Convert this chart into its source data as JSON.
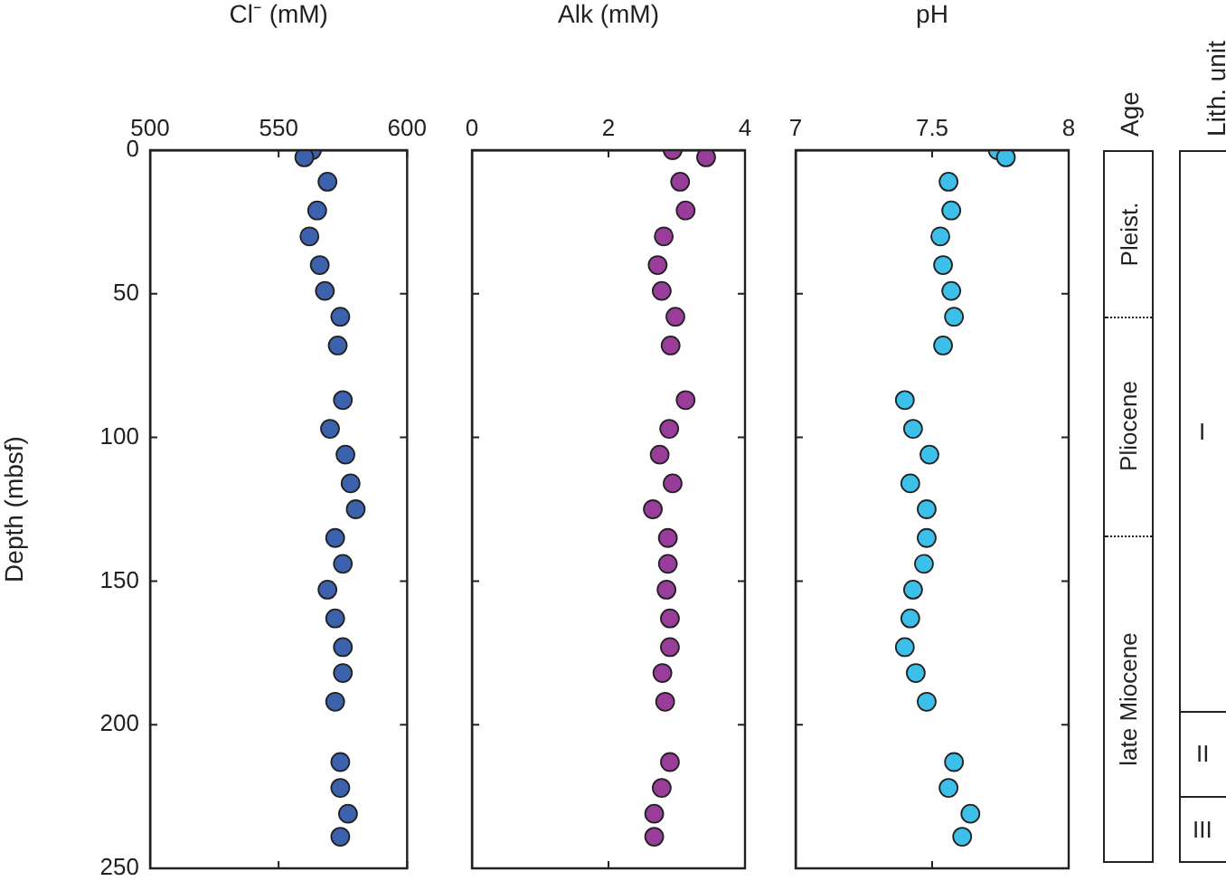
{
  "chart_data": [
    {
      "type": "scatter",
      "xlabel": "Cl⁻ (mM)",
      "ylabel": "Depth (mbsf)",
      "xlim": [
        500,
        600
      ],
      "xticks": [
        500,
        550,
        600
      ],
      "ylim": [
        250,
        0
      ],
      "yticks": [
        0,
        50,
        100,
        150,
        200,
        250
      ],
      "marker": "circle",
      "series": [
        {
          "color": "#3d62ad",
          "x": [
            563,
            560,
            569,
            565,
            562,
            566,
            568,
            574,
            573,
            575,
            570,
            576,
            578,
            580,
            572,
            575,
            569,
            572,
            575,
            575,
            572,
            574,
            574,
            577,
            574
          ],
          "values": [
            0,
            2.5,
            11,
            21,
            30,
            40,
            49,
            58,
            68,
            87,
            97,
            106,
            116,
            125,
            135,
            144,
            153,
            163,
            173,
            182,
            192,
            213,
            222,
            231,
            239
          ]
        }
      ]
    },
    {
      "type": "scatter",
      "xlabel": "Alk (mM)",
      "xlim": [
        0,
        4
      ],
      "xticks": [
        0,
        2,
        4
      ],
      "ylim": [
        250,
        0
      ],
      "yticks": [
        0,
        50,
        100,
        150,
        200,
        250
      ],
      "tick_labels": "x",
      "marker": "circle",
      "series": [
        {
          "color": "#9a3d9a",
          "x": [
            2.94,
            3.43,
            3.05,
            3.13,
            2.81,
            2.72,
            2.78,
            2.98,
            2.91,
            3.13,
            2.89,
            2.75,
            2.94,
            2.65,
            2.87,
            2.87,
            2.85,
            2.9,
            2.9,
            2.79,
            2.83,
            2.9,
            2.78,
            2.67,
            2.67
          ],
          "values": [
            0,
            2.5,
            11,
            21,
            30,
            40,
            49,
            58,
            68,
            87,
            97,
            106,
            116,
            125,
            135,
            144,
            153,
            163,
            173,
            182,
            192,
            213,
            222,
            231,
            239
          ]
        }
      ]
    },
    {
      "type": "scatter",
      "xlabel": "pH",
      "xlim": [
        7,
        8
      ],
      "xticks": [
        7,
        7.5,
        8
      ],
      "ylim": [
        250,
        0
      ],
      "yticks": [
        0,
        50,
        100,
        150,
        200,
        250
      ],
      "tick_labels": "x",
      "marker": "circle",
      "series": [
        {
          "color": "#3cc0ea",
          "x": [
            7.74,
            7.77,
            7.56,
            7.57,
            7.53,
            7.54,
            7.57,
            7.58,
            7.54,
            7.4,
            7.43,
            7.49,
            7.42,
            7.48,
            7.48,
            7.47,
            7.43,
            7.42,
            7.4,
            7.44,
            7.48,
            7.58,
            7.56,
            7.64,
            7.61
          ],
          "values": [
            0,
            2.5,
            11,
            21,
            30,
            40,
            49,
            58,
            68,
            87,
            97,
            106,
            116,
            125,
            135,
            144,
            153,
            163,
            173,
            182,
            192,
            213,
            222,
            231,
            239
          ]
        }
      ]
    },
    {
      "type": "other",
      "title": "Age",
      "annotations": [
        "Pleist.",
        "Pliocene",
        "late Miocene"
      ]
    },
    {
      "type": "other",
      "title": "Lith. unit",
      "annotations": [
        "I",
        "II",
        "III"
      ]
    }
  ]
}
